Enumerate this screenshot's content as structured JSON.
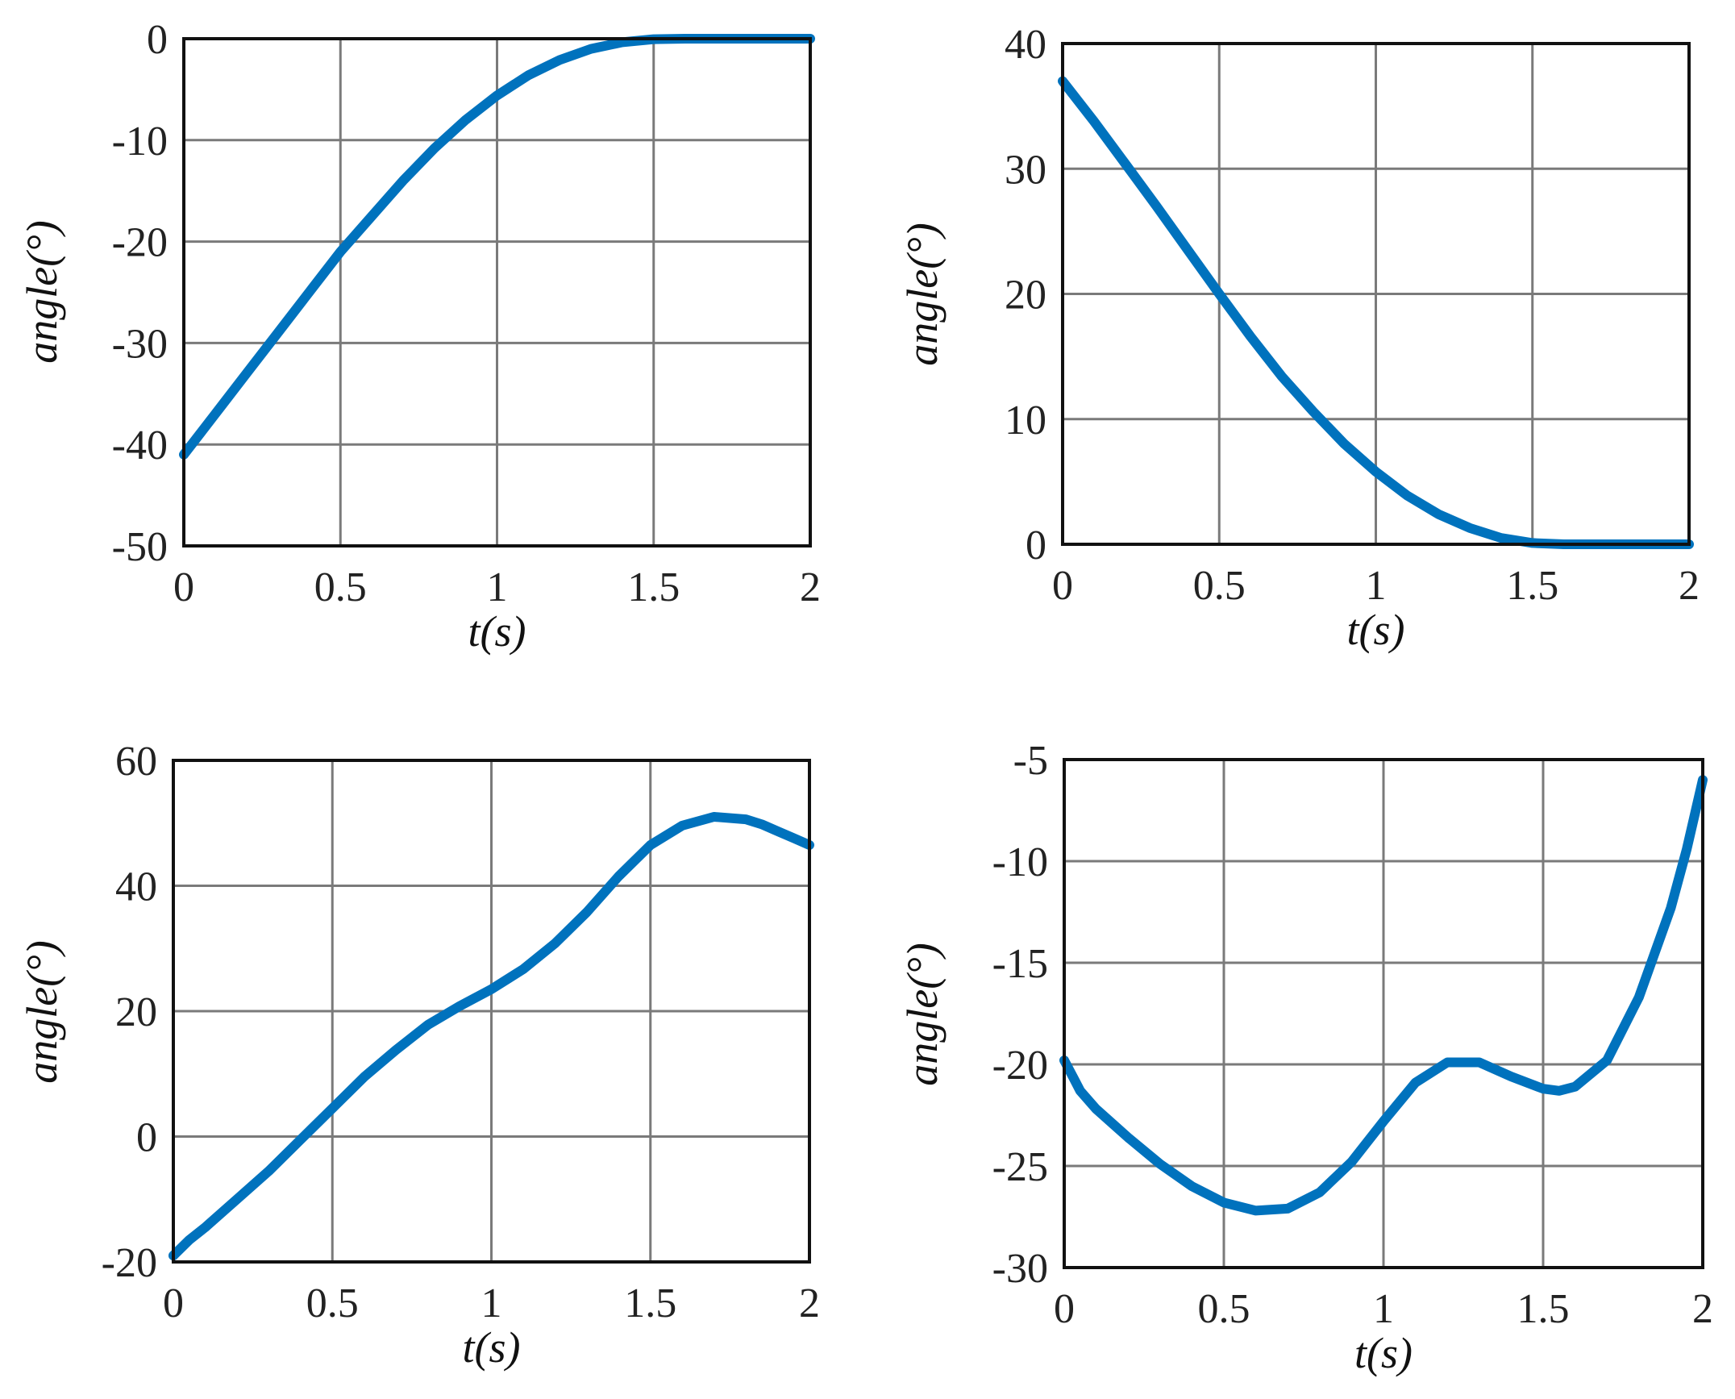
{
  "colors": {
    "series": "#0072BD",
    "grid": "#7a7a7a",
    "axes": "#111111"
  },
  "chart_data": [
    {
      "type": "line",
      "title": "",
      "xlabel": "t(s)",
      "ylabel": "angle(°)",
      "xlim": [
        0,
        2
      ],
      "ylim": [
        -50,
        0
      ],
      "x_ticks": [
        0,
        0.5,
        1,
        1.5,
        2
      ],
      "y_ticks": [
        -50,
        -40,
        -30,
        -20,
        -10,
        0
      ],
      "x_tick_labels": [
        "0",
        "0.5",
        "1",
        "1.5",
        "2"
      ],
      "y_tick_labels": [
        "-50",
        "-40",
        "-30",
        "-20",
        "-10",
        "0"
      ],
      "grid": true,
      "x": [
        0,
        0.1,
        0.2,
        0.3,
        0.4,
        0.5,
        0.6,
        0.7,
        0.8,
        0.9,
        1.0,
        1.1,
        1.2,
        1.3,
        1.4,
        1.5,
        1.6,
        1.7,
        1.8,
        1.9,
        2.0
      ],
      "values": [
        -41,
        -37,
        -33,
        -29,
        -25,
        -21,
        -17.5,
        -14,
        -10.8,
        -8,
        -5.6,
        -3.6,
        -2.1,
        -1.0,
        -0.35,
        -0.05,
        0,
        0,
        0,
        0,
        0
      ]
    },
    {
      "type": "line",
      "title": "",
      "xlabel": "t(s)",
      "ylabel": "angle(°)",
      "xlim": [
        0,
        2
      ],
      "ylim": [
        0,
        40
      ],
      "x_ticks": [
        0,
        0.5,
        1,
        1.5,
        2
      ],
      "y_ticks": [
        0,
        10,
        20,
        30,
        40
      ],
      "x_tick_labels": [
        "0",
        "0.5",
        "1",
        "1.5",
        "2"
      ],
      "y_tick_labels": [
        "0",
        "10",
        "20",
        "30",
        "40"
      ],
      "grid": true,
      "x": [
        0,
        0.1,
        0.2,
        0.3,
        0.4,
        0.5,
        0.6,
        0.7,
        0.8,
        0.9,
        1.0,
        1.1,
        1.2,
        1.3,
        1.4,
        1.5,
        1.6,
        1.7,
        1.8,
        1.9,
        2.0
      ],
      "values": [
        37,
        33.8,
        30.4,
        27,
        23.5,
        20,
        16.6,
        13.4,
        10.6,
        8,
        5.8,
        3.9,
        2.4,
        1.3,
        0.5,
        0.1,
        0,
        0,
        0,
        0,
        0
      ]
    },
    {
      "type": "line",
      "title": "",
      "xlabel": "t(s)",
      "ylabel": "angle(°)",
      "xlim": [
        0,
        2
      ],
      "ylim": [
        -20,
        60
      ],
      "x_ticks": [
        0,
        0.5,
        1,
        1.5,
        2
      ],
      "y_ticks": [
        -20,
        0,
        20,
        40,
        60
      ],
      "x_tick_labels": [
        "0",
        "0.5",
        "1",
        "1.5",
        "2"
      ],
      "y_tick_labels": [
        "-20",
        "0",
        "20",
        "40",
        "60"
      ],
      "grid": true,
      "x": [
        0,
        0.05,
        0.1,
        0.2,
        0.3,
        0.4,
        0.5,
        0.6,
        0.7,
        0.8,
        0.9,
        1.0,
        1.1,
        1.2,
        1.3,
        1.4,
        1.5,
        1.6,
        1.7,
        1.8,
        1.85,
        1.9,
        1.95,
        2.0
      ],
      "values": [
        -19,
        -16.5,
        -14.5,
        -10,
        -5.5,
        -0.5,
        4.5,
        9.5,
        13.8,
        17.8,
        20.8,
        23.5,
        26.7,
        30.8,
        35.8,
        41.5,
        46.5,
        49.6,
        51,
        50.6,
        49.8,
        48.7,
        47.6,
        46.5
      ]
    },
    {
      "type": "line",
      "title": "",
      "xlabel": "t(s)",
      "ylabel": "angle(°)",
      "xlim": [
        0,
        2
      ],
      "ylim": [
        -30,
        -5
      ],
      "x_ticks": [
        0,
        0.5,
        1,
        1.5,
        2
      ],
      "y_ticks": [
        -30,
        -25,
        -20,
        -15,
        -10,
        -5
      ],
      "x_tick_labels": [
        "0",
        "0.5",
        "1",
        "1.5",
        "2"
      ],
      "y_tick_labels": [
        "-30",
        "-25",
        "-20",
        "-15",
        "-10",
        "-5"
      ],
      "grid": true,
      "x": [
        0,
        0.03,
        0.05,
        0.1,
        0.2,
        0.3,
        0.4,
        0.5,
        0.6,
        0.7,
        0.8,
        0.9,
        1.0,
        1.1,
        1.2,
        1.3,
        1.4,
        1.5,
        1.55,
        1.6,
        1.7,
        1.8,
        1.9,
        1.95,
        2.0
      ],
      "values": [
        -19.8,
        -20.7,
        -21.3,
        -22.2,
        -23.6,
        -24.9,
        -26,
        -26.8,
        -27.2,
        -27.1,
        -26.3,
        -24.8,
        -22.8,
        -20.9,
        -19.9,
        -19.9,
        -20.6,
        -21.2,
        -21.3,
        -21.1,
        -19.8,
        -16.7,
        -12.3,
        -9.4,
        -6
      ]
    }
  ]
}
